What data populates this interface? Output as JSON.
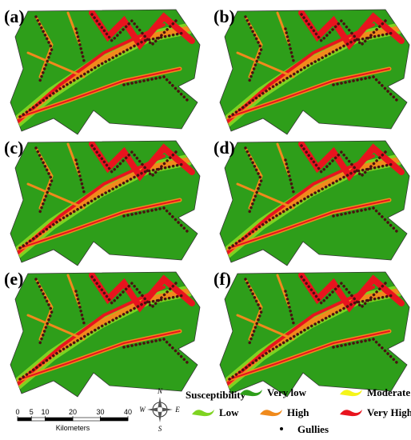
{
  "panels": [
    {
      "label": "(a)"
    },
    {
      "label": "(b)"
    },
    {
      "label": "(c)"
    },
    {
      "label": "(d)"
    },
    {
      "label": "(e)"
    },
    {
      "label": "(f)"
    }
  ],
  "legend": {
    "title": "Susceptibility",
    "items": [
      {
        "label": "Very low",
        "color": "#2e9e1a"
      },
      {
        "label": "Moderate",
        "color": "#f5f51a"
      },
      {
        "label": "Low",
        "color": "#7ed321"
      },
      {
        "label": "High",
        "color": "#f08a1c"
      },
      {
        "label": "Very High",
        "color": "#e8141e"
      }
    ],
    "gullies": "Gullies"
  },
  "scale_bar": {
    "ticks": [
      0,
      5,
      10,
      20,
      30,
      40
    ],
    "unit": "Kilometers"
  },
  "compass": {
    "n": "N",
    "s": "S",
    "e": "E",
    "w": "W"
  }
}
